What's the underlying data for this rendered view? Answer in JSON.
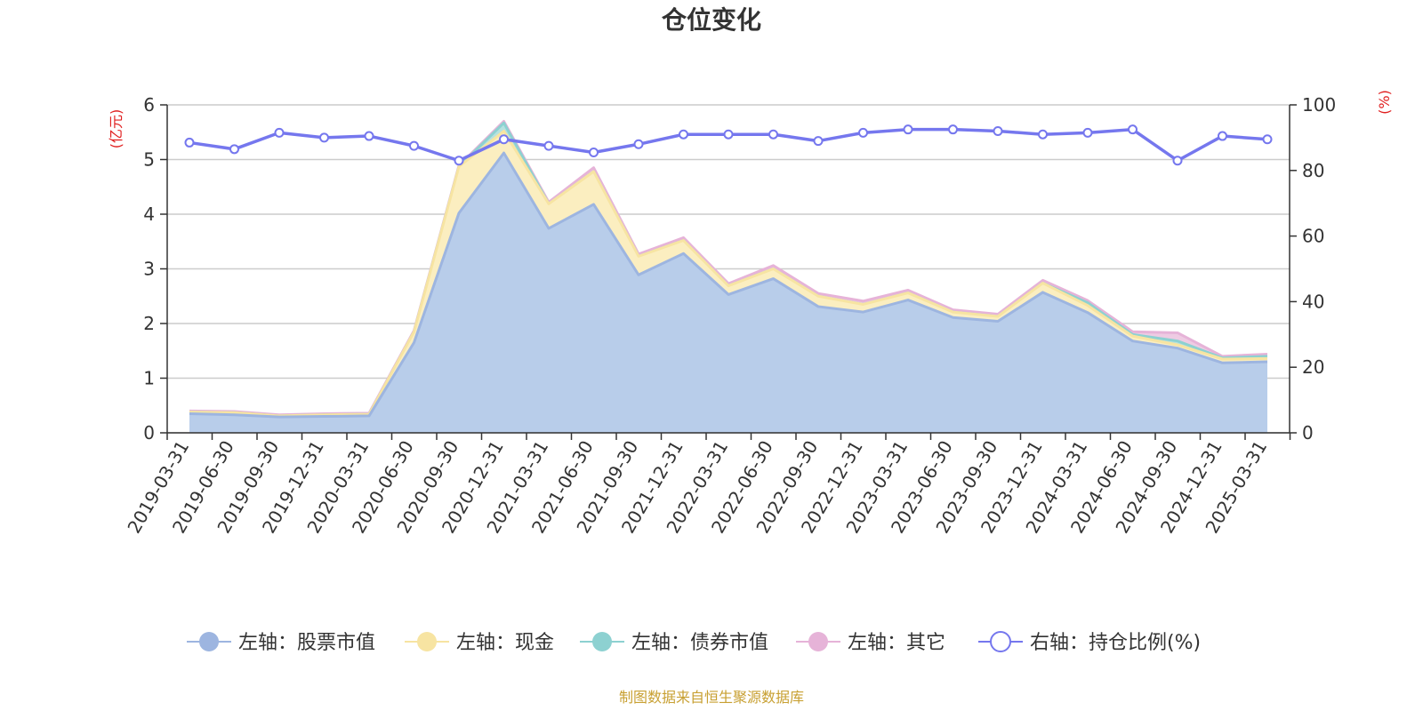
{
  "chart_data": {
    "type": "area",
    "title": "仓位变化",
    "y_left_unit": "(亿元)",
    "y_right_unit": "(%)",
    "y_left_ticks": [
      "0",
      "1",
      "2",
      "3",
      "4",
      "5",
      "6"
    ],
    "y_right_ticks": [
      "0",
      "20",
      "40",
      "60",
      "80",
      "100"
    ],
    "ylim_left": [
      0,
      6
    ],
    "ylim_right": [
      0,
      100
    ],
    "grid": true,
    "legend_position": "bottom",
    "categories": [
      "2019-03-31",
      "2019-06-30",
      "2019-09-30",
      "2019-12-31",
      "2020-03-31",
      "2020-06-30",
      "2020-09-30",
      "2020-12-31",
      "2021-03-31",
      "2021-06-30",
      "2021-09-30",
      "2021-12-31",
      "2022-03-31",
      "2022-06-30",
      "2022-09-30",
      "2022-12-31",
      "2023-03-31",
      "2023-06-30",
      "2023-09-30",
      "2023-12-31",
      "2024-03-31",
      "2024-06-30",
      "2024-09-30",
      "2024-12-31",
      "2025-03-31"
    ],
    "series": [
      {
        "name": "左轴：股票市值",
        "axis": "left",
        "stack": true,
        "color": "#9db5e0",
        "fill": "#b8cdea",
        "values": [
          0.35,
          0.33,
          0.29,
          0.3,
          0.31,
          1.65,
          4.02,
          5.12,
          3.74,
          4.18,
          2.89,
          3.28,
          2.53,
          2.82,
          2.31,
          2.21,
          2.43,
          2.11,
          2.04,
          2.57,
          2.2,
          1.68,
          1.55,
          1.28,
          1.3
        ]
      },
      {
        "name": "左轴：现金",
        "axis": "left",
        "stack": true,
        "color": "#f7e4a2",
        "fill": "#fbeec0",
        "values": [
          0.03,
          0.04,
          0.02,
          0.03,
          0.03,
          0.2,
          0.85,
          0.4,
          0.45,
          0.6,
          0.34,
          0.24,
          0.16,
          0.18,
          0.19,
          0.14,
          0.13,
          0.1,
          0.09,
          0.17,
          0.13,
          0.09,
          0.06,
          0.07,
          0.06
        ]
      },
      {
        "name": "左轴：债券市值",
        "axis": "left",
        "stack": true,
        "color": "#8dd1d1",
        "fill": "#b5e2e0",
        "values": [
          0.0,
          0.0,
          0.0,
          0.0,
          0.0,
          0.0,
          0.0,
          0.15,
          0.0,
          0.0,
          0.0,
          0.0,
          0.0,
          0.0,
          0.0,
          0.0,
          0.0,
          0.0,
          0.0,
          0.0,
          0.05,
          0.03,
          0.07,
          0.02,
          0.04
        ]
      },
      {
        "name": "左轴：其它",
        "axis": "left",
        "stack": true,
        "color": "#e6b3d8",
        "fill": "#eecbe3",
        "values": [
          0.02,
          0.02,
          0.02,
          0.02,
          0.02,
          0.02,
          0.02,
          0.03,
          0.03,
          0.07,
          0.04,
          0.05,
          0.04,
          0.06,
          0.05,
          0.06,
          0.05,
          0.04,
          0.04,
          0.05,
          0.04,
          0.05,
          0.15,
          0.03,
          0.04
        ]
      },
      {
        "name": "右轴：持仓比例(%)",
        "axis": "right",
        "type": "line",
        "color": "#7577ee",
        "values": [
          88.5,
          86.5,
          91.5,
          90.0,
          90.5,
          87.5,
          83.0,
          89.5,
          87.5,
          85.5,
          88.0,
          91.0,
          91.0,
          91.0,
          89.0,
          91.5,
          92.5,
          92.5,
          92.0,
          91.0,
          91.5,
          92.5,
          83.0,
          90.5,
          89.5
        ]
      }
    ]
  },
  "footer": {
    "source": "制图数据来自恒生聚源数据库"
  }
}
